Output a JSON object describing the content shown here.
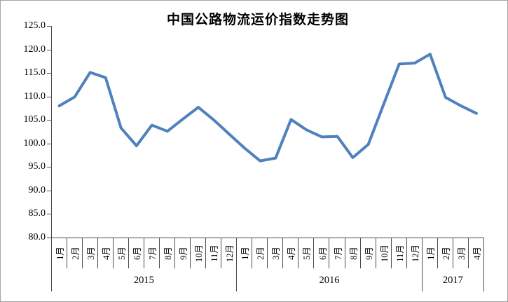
{
  "title": "中国公路物流运价指数走势图",
  "colors": {
    "line": "#4F81BD",
    "axis": "#4D4D4D",
    "border": "#A3A3A3"
  },
  "y_axis": {
    "tick_labels": [
      "125.0",
      "120.0",
      "115.0",
      "110.0",
      "105.0",
      "100.0",
      "95.0",
      "90.0",
      "85.0",
      "80.0"
    ]
  },
  "x_axis": {
    "groups": [
      {
        "year": "2015",
        "months": [
          "1月",
          "2月",
          "3月",
          "4月",
          "5月",
          "6月",
          "7月",
          "8月",
          "9月",
          "10月",
          "11月",
          "12月"
        ]
      },
      {
        "year": "2016",
        "months": [
          "1月",
          "2月",
          "3月",
          "4月",
          "5月",
          "6月",
          "7月",
          "8月",
          "9月",
          "10月",
          "11月",
          "12月"
        ]
      },
      {
        "year": "2017",
        "months": [
          "1月",
          "2月",
          "3月",
          "4月"
        ]
      }
    ]
  },
  "chart_data": {
    "type": "line",
    "title": "中国公路物流运价指数走势图",
    "categories": [
      "2015-1月",
      "2015-2月",
      "2015-3月",
      "2015-4月",
      "2015-5月",
      "2015-6月",
      "2015-7月",
      "2015-8月",
      "2015-9月",
      "2015-10月",
      "2015-11月",
      "2015-12月",
      "2016-1月",
      "2016-2月",
      "2016-3月",
      "2016-4月",
      "2016-5月",
      "2016-6月",
      "2016-7月",
      "2016-8月",
      "2016-9月",
      "2016-10月",
      "2016-11月",
      "2016-12月",
      "2017-1月",
      "2017-2月",
      "2017-3月",
      "2017-4月"
    ],
    "series": [
      {
        "name": "中国公路物流运价指数",
        "color": "#4F81BD",
        "values": [
          108.0,
          109.9,
          115.1,
          114.0,
          103.3,
          99.5,
          103.9,
          102.6,
          105.2,
          107.7,
          105.0,
          102.0,
          99.0,
          96.3,
          96.9,
          105.1,
          102.9,
          101.4,
          101.5,
          97.0,
          99.8,
          108.4,
          116.9,
          117.1,
          119.0,
          109.8,
          108.0,
          106.4
        ]
      }
    ],
    "xlabel": "",
    "ylabel": "",
    "ylim": [
      80.0,
      125.0
    ],
    "ytick_step": 5.0,
    "grid": "off",
    "legend": "none"
  }
}
